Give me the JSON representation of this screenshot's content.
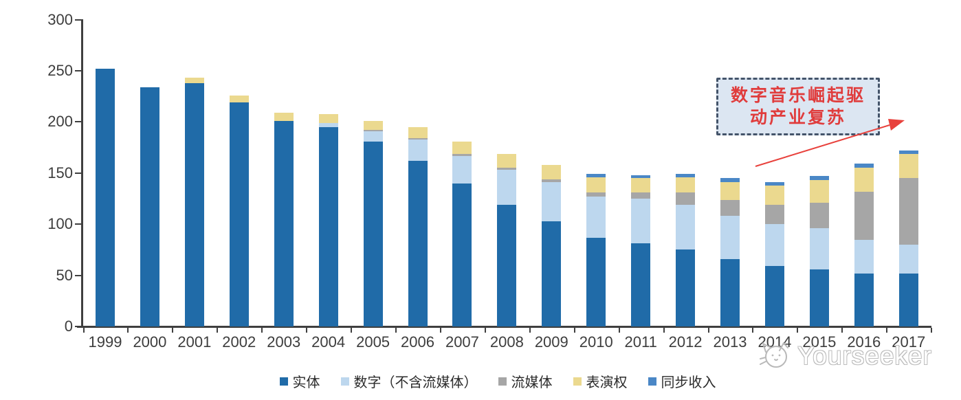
{
  "chart_data": {
    "type": "bar",
    "stacked": true,
    "title": "",
    "xlabel": "",
    "ylabel": "",
    "ylim": [
      0,
      300
    ],
    "y_ticks": [
      0,
      50,
      100,
      150,
      200,
      250,
      300
    ],
    "grid": false,
    "legend_position": "bottom",
    "categories": [
      "1999",
      "2000",
      "2001",
      "2002",
      "2003",
      "2004",
      "2005",
      "2006",
      "2007",
      "2008",
      "2009",
      "2010",
      "2011",
      "2012",
      "2013",
      "2014",
      "2015",
      "2016",
      "2017"
    ],
    "series": [
      {
        "name": "实体",
        "color": "#206BA8",
        "values": [
          252,
          234,
          238,
          219,
          201,
          195,
          181,
          162,
          140,
          119,
          103,
          87,
          81,
          75,
          66,
          59,
          56,
          52,
          52
        ]
      },
      {
        "name": "数字（不含流媒体）",
        "color": "#BDD7EE",
        "values": [
          0,
          0,
          0,
          0,
          0,
          4,
          10,
          21,
          27,
          34,
          38,
          40,
          44,
          44,
          42,
          41,
          40,
          33,
          28
        ]
      },
      {
        "name": "流媒体",
        "color": "#A6A6A6",
        "values": [
          0,
          0,
          0,
          0,
          0,
          0,
          1,
          1,
          2,
          2,
          3,
          4,
          6,
          12,
          16,
          19,
          25,
          47,
          65
        ]
      },
      {
        "name": "表演权",
        "color": "#EBD98F",
        "values": [
          0,
          0,
          5,
          7,
          8,
          9,
          9,
          11,
          12,
          14,
          14,
          15,
          14,
          15,
          17,
          19,
          22,
          23,
          24
        ]
      },
      {
        "name": "同步收入",
        "color": "#4A87C6",
        "values": [
          0,
          0,
          0,
          0,
          0,
          0,
          0,
          0,
          0,
          0,
          0,
          3,
          3,
          3,
          4,
          3,
          4,
          4,
          3
        ]
      }
    ]
  },
  "annotation": {
    "line1": "数字音乐崛起驱",
    "line2": "动产业复苏",
    "text_color": "#E03C3C",
    "box_fill": "#DCE6F2",
    "box_border": "#44546A",
    "arrow_color": "#E8413C"
  },
  "watermark": {
    "text": "Yourseeker"
  },
  "axis": {
    "color": "#3F3F3F"
  }
}
